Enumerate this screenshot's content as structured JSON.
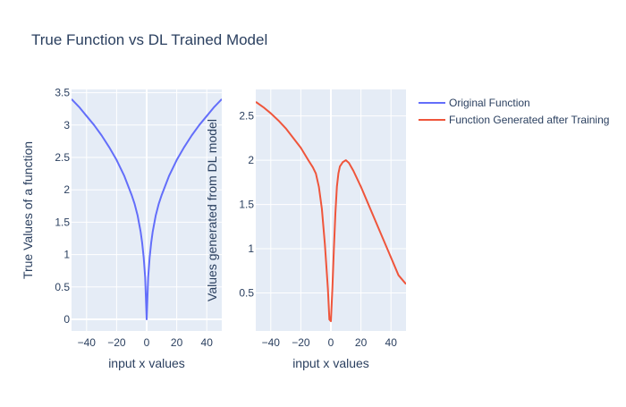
{
  "chart_data": {
    "title": "True Function vs DL Trained Model",
    "legend_position": "top-right",
    "legend": [
      {
        "name": "Original Function",
        "color": "#636efa"
      },
      {
        "name": "Function Generated after Training",
        "color": "#ef553b"
      }
    ],
    "subplots": [
      {
        "type": "line",
        "xlabel": "input x values",
        "ylabel": "True Values of a function",
        "xlim": [
          -50,
          50
        ],
        "ylim": [
          -0.18,
          3.55
        ],
        "xticks": [
          -40,
          -20,
          0,
          20,
          40
        ],
        "xtick_labels": [
          "−40",
          "−20",
          "0",
          "20",
          "40"
        ],
        "yticks": [
          0,
          0.5,
          1,
          1.5,
          2,
          2.5,
          3,
          3.5
        ],
        "ytick_labels": [
          "0",
          "0.5",
          "1",
          "1.5",
          "2",
          "2.5",
          "3",
          "3.5"
        ],
        "grid": true,
        "series": [
          {
            "name": "Original Function",
            "color": "#636efa",
            "x": [
              -50,
              -45,
              -40,
              -35,
              -30,
              -25,
              -20,
              -15,
              -10,
              -8,
              -6,
              -4,
              -3,
              -2,
              -1,
              0,
              1,
              2,
              3,
              4,
              6,
              8,
              10,
              15,
              20,
              25,
              30,
              35,
              40,
              45,
              50
            ],
            "y": [
              3.4,
              3.28,
              3.14,
              3.0,
              2.84,
              2.66,
              2.46,
              2.22,
              1.92,
              1.78,
              1.6,
              1.35,
              1.18,
              0.96,
              0.65,
              0.0,
              0.65,
              0.96,
              1.18,
              1.35,
              1.6,
              1.78,
              1.92,
              2.22,
              2.46,
              2.66,
              2.84,
              3.0,
              3.14,
              3.28,
              3.4
            ]
          }
        ]
      },
      {
        "type": "line",
        "xlabel": "input x values",
        "ylabel": "Values generated from DL model",
        "xlim": [
          -50,
          50
        ],
        "ylim": [
          0.07,
          2.8
        ],
        "xticks": [
          -40,
          -20,
          0,
          20,
          40
        ],
        "xtick_labels": [
          "−40",
          "−20",
          "0",
          "20",
          "40"
        ],
        "yticks": [
          0.5,
          1,
          1.5,
          2,
          2.5
        ],
        "ytick_labels": [
          "0.5",
          "1",
          "1.5",
          "2",
          "2.5"
        ],
        "grid": true,
        "series": [
          {
            "name": "Function Generated after Training",
            "color": "#ef553b",
            "x": [
              -50,
              -45,
              -40,
              -35,
              -30,
              -25,
              -20,
              -15,
              -12,
              -10,
              -8,
              -6,
              -4,
              -2,
              -1,
              0,
              1,
              2,
              3,
              4,
              5,
              6,
              8,
              10,
              12,
              15,
              20,
              25,
              30,
              35,
              40,
              45,
              50
            ],
            "y": [
              2.66,
              2.6,
              2.53,
              2.45,
              2.36,
              2.25,
              2.14,
              2.0,
              1.92,
              1.85,
              1.7,
              1.45,
              1.05,
              0.55,
              0.2,
              0.18,
              0.55,
              1.0,
              1.4,
              1.7,
              1.85,
              1.93,
              1.98,
              2.0,
              1.97,
              1.88,
              1.7,
              1.5,
              1.3,
              1.1,
              0.9,
              0.7,
              0.6
            ]
          }
        ]
      }
    ]
  }
}
